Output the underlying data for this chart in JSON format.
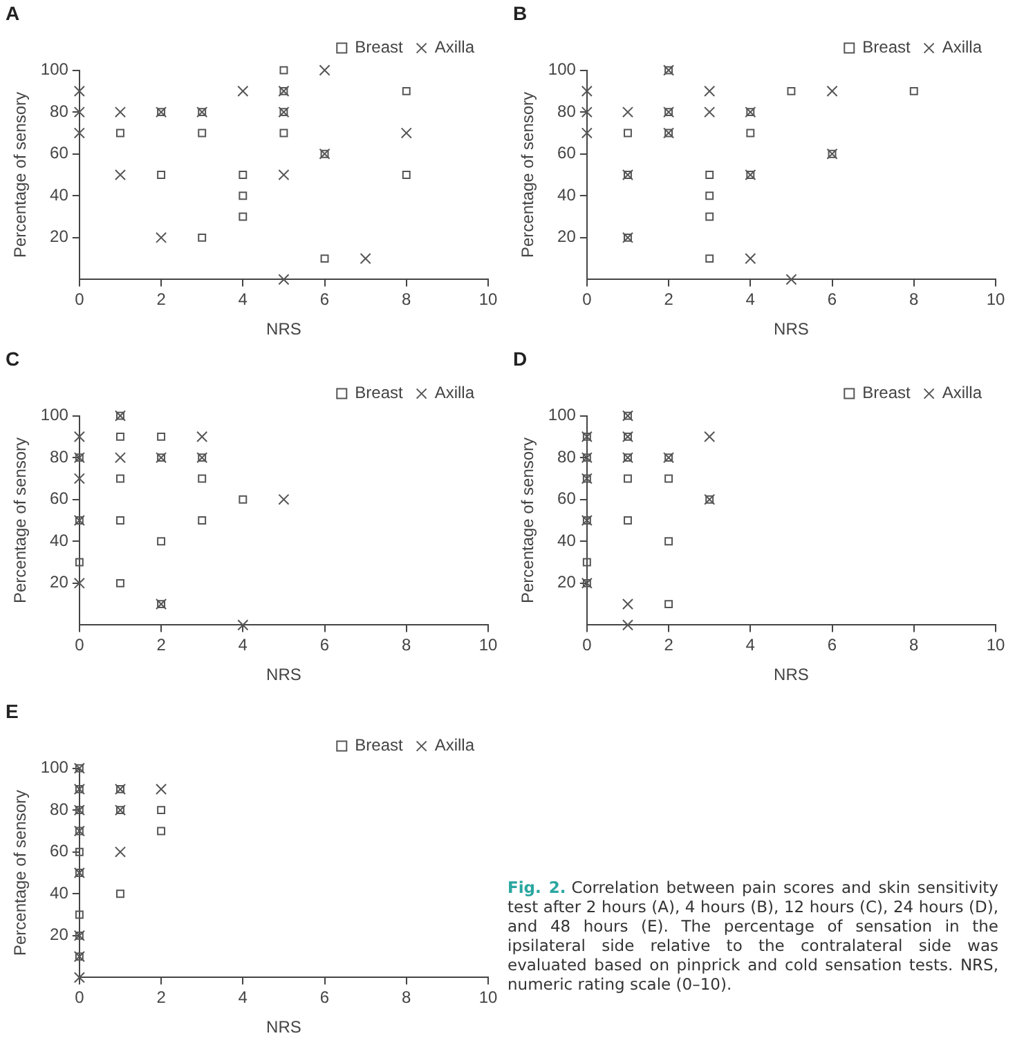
{
  "chart_data": [
    {
      "type": "scatter",
      "title": "A",
      "xlabel": "NRS",
      "ylabel": "Percentage of sensory",
      "xlim": [
        0,
        10
      ],
      "ylim": [
        0,
        100
      ],
      "xticks": [
        0,
        2,
        4,
        6,
        8,
        10
      ],
      "yticks": [
        20,
        40,
        60,
        80,
        100
      ],
      "legend": "top right",
      "series": [
        {
          "name": "Breast",
          "color": "#555555",
          "marker": "square",
          "x": [
            5,
            5,
            8,
            2,
            3,
            5,
            1,
            3,
            5,
            6,
            2,
            4,
            8,
            4,
            4,
            3,
            6
          ],
          "values": [
            100,
            90,
            90,
            80,
            80,
            80,
            70,
            70,
            70,
            60,
            50,
            50,
            50,
            40,
            30,
            20,
            10
          ]
        },
        {
          "name": "Axilla",
          "color": "#555555",
          "marker": "cross",
          "x": [
            0,
            0,
            0,
            1,
            1,
            2,
            3,
            4,
            5,
            5,
            6,
            6,
            8,
            5,
            2,
            7,
            5
          ],
          "values": [
            90,
            80,
            70,
            80,
            50,
            80,
            80,
            90,
            90,
            80,
            100,
            60,
            70,
            50,
            20,
            10,
            0
          ]
        }
      ]
    },
    {
      "type": "scatter",
      "title": "B",
      "xlabel": "NRS",
      "ylabel": "Percentage of sensory",
      "xlim": [
        0,
        10
      ],
      "ylim": [
        0,
        100
      ],
      "xticks": [
        0,
        2,
        4,
        6,
        8,
        10
      ],
      "yticks": [
        20,
        40,
        60,
        80,
        100
      ],
      "legend": "top right",
      "series": [
        {
          "name": "Breast",
          "color": "#555555",
          "marker": "square",
          "x": [
            2,
            5,
            8,
            2,
            4,
            1,
            2,
            4,
            6,
            1,
            3,
            4,
            3,
            3,
            1,
            3
          ],
          "values": [
            100,
            90,
            90,
            80,
            80,
            70,
            70,
            70,
            60,
            50,
            50,
            50,
            40,
            30,
            20,
            10
          ]
        },
        {
          "name": "Axilla",
          "color": "#555555",
          "marker": "cross",
          "x": [
            0,
            0,
            0,
            2,
            3,
            6,
            1,
            2,
            3,
            4,
            2,
            6,
            1,
            4,
            1,
            4,
            5
          ],
          "values": [
            90,
            80,
            70,
            100,
            90,
            90,
            80,
            80,
            80,
            80,
            70,
            60,
            50,
            50,
            20,
            10,
            0
          ]
        }
      ]
    },
    {
      "type": "scatter",
      "title": "C",
      "xlabel": "NRS",
      "ylabel": "Percentage of sensory",
      "xlim": [
        0,
        10
      ],
      "ylim": [
        0,
        100
      ],
      "xticks": [
        0,
        2,
        4,
        6,
        8,
        10
      ],
      "yticks": [
        20,
        40,
        60,
        80,
        100
      ],
      "legend": "top right",
      "series": [
        {
          "name": "Breast",
          "color": "#555555",
          "marker": "square",
          "x": [
            1,
            1,
            2,
            0,
            2,
            3,
            1,
            3,
            4,
            0,
            1,
            3,
            2,
            0,
            1,
            2
          ],
          "values": [
            100,
            90,
            90,
            80,
            80,
            80,
            70,
            70,
            60,
            50,
            50,
            50,
            40,
            30,
            20,
            10
          ]
        },
        {
          "name": "Axilla",
          "color": "#555555",
          "marker": "cross",
          "x": [
            1,
            0,
            3,
            0,
            1,
            2,
            3,
            0,
            5,
            0,
            0,
            2,
            4
          ],
          "values": [
            100,
            90,
            90,
            80,
            80,
            80,
            80,
            70,
            60,
            50,
            20,
            10,
            0
          ]
        }
      ]
    },
    {
      "type": "scatter",
      "title": "D",
      "xlabel": "NRS",
      "ylabel": "Percentage of sensory",
      "xlim": [
        0,
        10
      ],
      "ylim": [
        0,
        100
      ],
      "xticks": [
        0,
        2,
        4,
        6,
        8,
        10
      ],
      "yticks": [
        20,
        40,
        60,
        80,
        100
      ],
      "legend": "top right",
      "series": [
        {
          "name": "Breast",
          "color": "#555555",
          "marker": "square",
          "x": [
            1,
            0,
            1,
            0,
            1,
            2,
            0,
            1,
            2,
            3,
            0,
            1,
            2,
            0,
            0,
            2
          ],
          "values": [
            100,
            90,
            90,
            80,
            80,
            80,
            70,
            70,
            70,
            60,
            50,
            50,
            40,
            30,
            20,
            10
          ]
        },
        {
          "name": "Axilla",
          "color": "#555555",
          "marker": "cross",
          "x": [
            1,
            0,
            1,
            3,
            0,
            1,
            2,
            0,
            3,
            0,
            0,
            1,
            1
          ],
          "values": [
            100,
            90,
            90,
            90,
            80,
            80,
            80,
            70,
            60,
            50,
            20,
            10,
            0
          ]
        }
      ]
    },
    {
      "type": "scatter",
      "title": "E",
      "xlabel": "NRS",
      "ylabel": "Percentage of sensory",
      "xlim": [
        0,
        10
      ],
      "ylim": [
        0,
        100
      ],
      "xticks": [
        0,
        2,
        4,
        6,
        8,
        10
      ],
      "yticks": [
        20,
        40,
        60,
        80,
        100
      ],
      "legend": "top right",
      "series": [
        {
          "name": "Breast",
          "color": "#555555",
          "marker": "square",
          "x": [
            0,
            0,
            1,
            0,
            1,
            2,
            0,
            2,
            0,
            0,
            1,
            0,
            0,
            0
          ],
          "values": [
            100,
            90,
            90,
            80,
            80,
            80,
            70,
            70,
            60,
            50,
            40,
            30,
            20,
            10
          ]
        },
        {
          "name": "Axilla",
          "color": "#555555",
          "marker": "cross",
          "x": [
            0,
            0,
            1,
            2,
            0,
            1,
            0,
            1,
            0,
            0,
            0,
            0
          ],
          "values": [
            100,
            90,
            90,
            90,
            80,
            80,
            70,
            60,
            50,
            20,
            10,
            0
          ]
        }
      ]
    },
    {
      "type": "other",
      "title": "Fig. 2.",
      "annotations": [
        "Correlation between pain scores and skin sensitivity test after 2 hours (A), 4 hours (B), 12 hours (C), 24 hours (D), and 48 hours (E). The percentage of sensation in the ipsilateral side relative to the contralateral side was evaluated based on pinprick and cold sensation tests. NRS, numeric rating scale (0–10)."
      ]
    }
  ]
}
